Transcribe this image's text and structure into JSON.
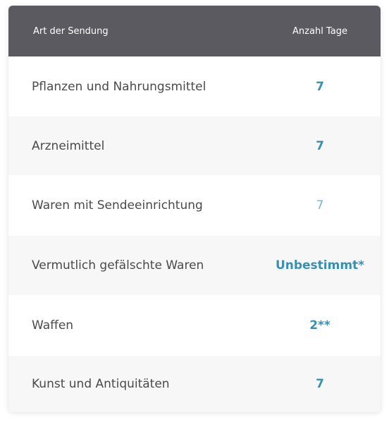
{
  "table": {
    "headers": {
      "type": "Art der Sendung",
      "days": "Anzahl Tage"
    },
    "rows": [
      {
        "type": "Pflanzen und Nahrungsmittel",
        "days": "7"
      },
      {
        "type": "Arzneimittel",
        "days": "7"
      },
      {
        "type": "Waren mit Sendeeinrichtung",
        "days": "7"
      },
      {
        "type": "Vermutlich gefälschte Waren",
        "days": "Unbestimmt*"
      },
      {
        "type": "Waffen",
        "days": "2**"
      },
      {
        "type": "Kunst und Antiquitäten",
        "days": "7"
      }
    ],
    "colors": {
      "header_bg": "#5b5a60",
      "value": "#3a8fb1",
      "alt_row": "#f7f7f7"
    }
  }
}
